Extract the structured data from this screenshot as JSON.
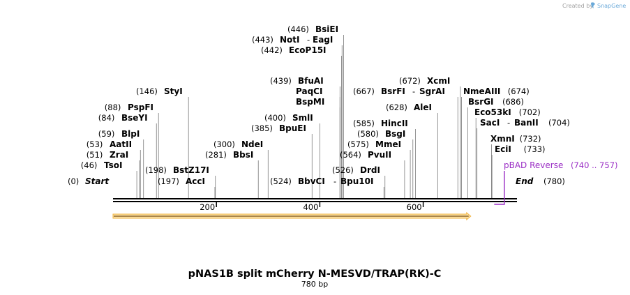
{
  "credit": {
    "text": "Created by",
    "brand": "SnapGene"
  },
  "construct": {
    "name": "pNAS1B split mCherry N-MESVD/TRAP(RK)-C",
    "size": "780 bp",
    "length": 780
  },
  "ends": {
    "start_pos": "(0)",
    "start_label": "Start",
    "end_label": "End",
    "end_pos": "(780)"
  },
  "ticks": [
    {
      "value": 200,
      "label": "200"
    },
    {
      "value": 400,
      "label": "400"
    },
    {
      "value": 600,
      "label": "600"
    }
  ],
  "feature": {
    "name": "orf-arrow",
    "start": 0,
    "end": 692,
    "color": "#f5b342"
  },
  "primer": {
    "name": "pBAD Reverse",
    "range": "(740 .. 757)",
    "start": 740,
    "end": 757,
    "color": "#9b2fc5"
  },
  "enzymes": [
    {
      "id": "tsoi",
      "pos": "(46)",
      "name": "TsoI",
      "site": 46
    },
    {
      "id": "zrai",
      "pos": "(51)",
      "name": "ZraI",
      "site": 51
    },
    {
      "id": "aatii",
      "pos": "(53)",
      "name": "AatII",
      "site": 53
    },
    {
      "id": "blpi",
      "pos": "(59)",
      "name": "BlpI",
      "site": 59
    },
    {
      "id": "bseyi",
      "pos": "(84)",
      "name": "BseYI",
      "site": 84
    },
    {
      "id": "pspfi",
      "pos": "(88)",
      "name": "PspFI",
      "site": 88
    },
    {
      "id": "styi",
      "pos": "(146)",
      "name": "StyI",
      "site": 146
    },
    {
      "id": "acci",
      "pos": "(197)",
      "name": "AccI",
      "site": 197
    },
    {
      "id": "bstz17i",
      "pos": "(198)",
      "name": "BstZ17I",
      "site": 198
    },
    {
      "id": "bbsi",
      "pos": "(281)",
      "name": "BbsI",
      "site": 281
    },
    {
      "id": "ndei",
      "pos": "(300)",
      "name": "NdeI",
      "site": 300
    },
    {
      "id": "bpuei",
      "pos": "(385)",
      "name": "BpuEI",
      "site": 385
    },
    {
      "id": "smli",
      "pos": "(400)",
      "name": "SmlI",
      "site": 400
    },
    {
      "id": "bspmi",
      "pos": "",
      "name": "BspMI",
      "site": 439
    },
    {
      "id": "paqci",
      "pos": "",
      "name": "PaqCI",
      "site": 439
    },
    {
      "id": "bfuai",
      "pos": "(439)",
      "name": "BfuAI",
      "site": 439
    },
    {
      "id": "ecop15i",
      "pos": "(442)",
      "name": "EcoP15I",
      "site": 442
    },
    {
      "id": "noti",
      "pos": "(443)",
      "name": "NotI",
      "site": 443,
      "alt": "EagI"
    },
    {
      "id": "bsiei",
      "pos": "(446)",
      "name": "BsiEI",
      "site": 446
    },
    {
      "id": "bbvci",
      "pos": "(524)",
      "name": "BbvCI",
      "site": 524,
      "alt": "Bpu10I"
    },
    {
      "id": "drdi",
      "pos": "(526)",
      "name": "DrdI",
      "site": 526
    },
    {
      "id": "pvuii",
      "pos": "(564)",
      "name": "PvuII",
      "site": 564
    },
    {
      "id": "mmei",
      "pos": "(575)",
      "name": "MmeI",
      "site": 575
    },
    {
      "id": "bsgi",
      "pos": "(580)",
      "name": "BsgI",
      "site": 580
    },
    {
      "id": "hincii",
      "pos": "(585)",
      "name": "HincII",
      "site": 585
    },
    {
      "id": "alei",
      "pos": "(628)",
      "name": "AleI",
      "site": 628
    },
    {
      "id": "bsrfi",
      "pos": "(667)",
      "name": "BsrFI",
      "site": 667,
      "alt": "SgrAI"
    },
    {
      "id": "xcmi",
      "pos": "(672)",
      "name": "XcmI",
      "site": 672
    },
    {
      "id": "nmeaiii",
      "pos": "(674)",
      "name": "NmeAIII",
      "site": 674
    },
    {
      "id": "bsrgi",
      "pos": "(686)",
      "name": "BsrGI",
      "site": 686
    },
    {
      "id": "eco53ki",
      "pos": "(702)",
      "name": "Eco53kI",
      "site": 702
    },
    {
      "id": "saci",
      "pos": "(704)",
      "name": "SacI",
      "site": 704,
      "alt": "BanII"
    },
    {
      "id": "xmni",
      "pos": "(732)",
      "name": "XmnI",
      "site": 732
    },
    {
      "id": "ecii",
      "pos": "(733)",
      "name": "EciI",
      "site": 733
    }
  ]
}
